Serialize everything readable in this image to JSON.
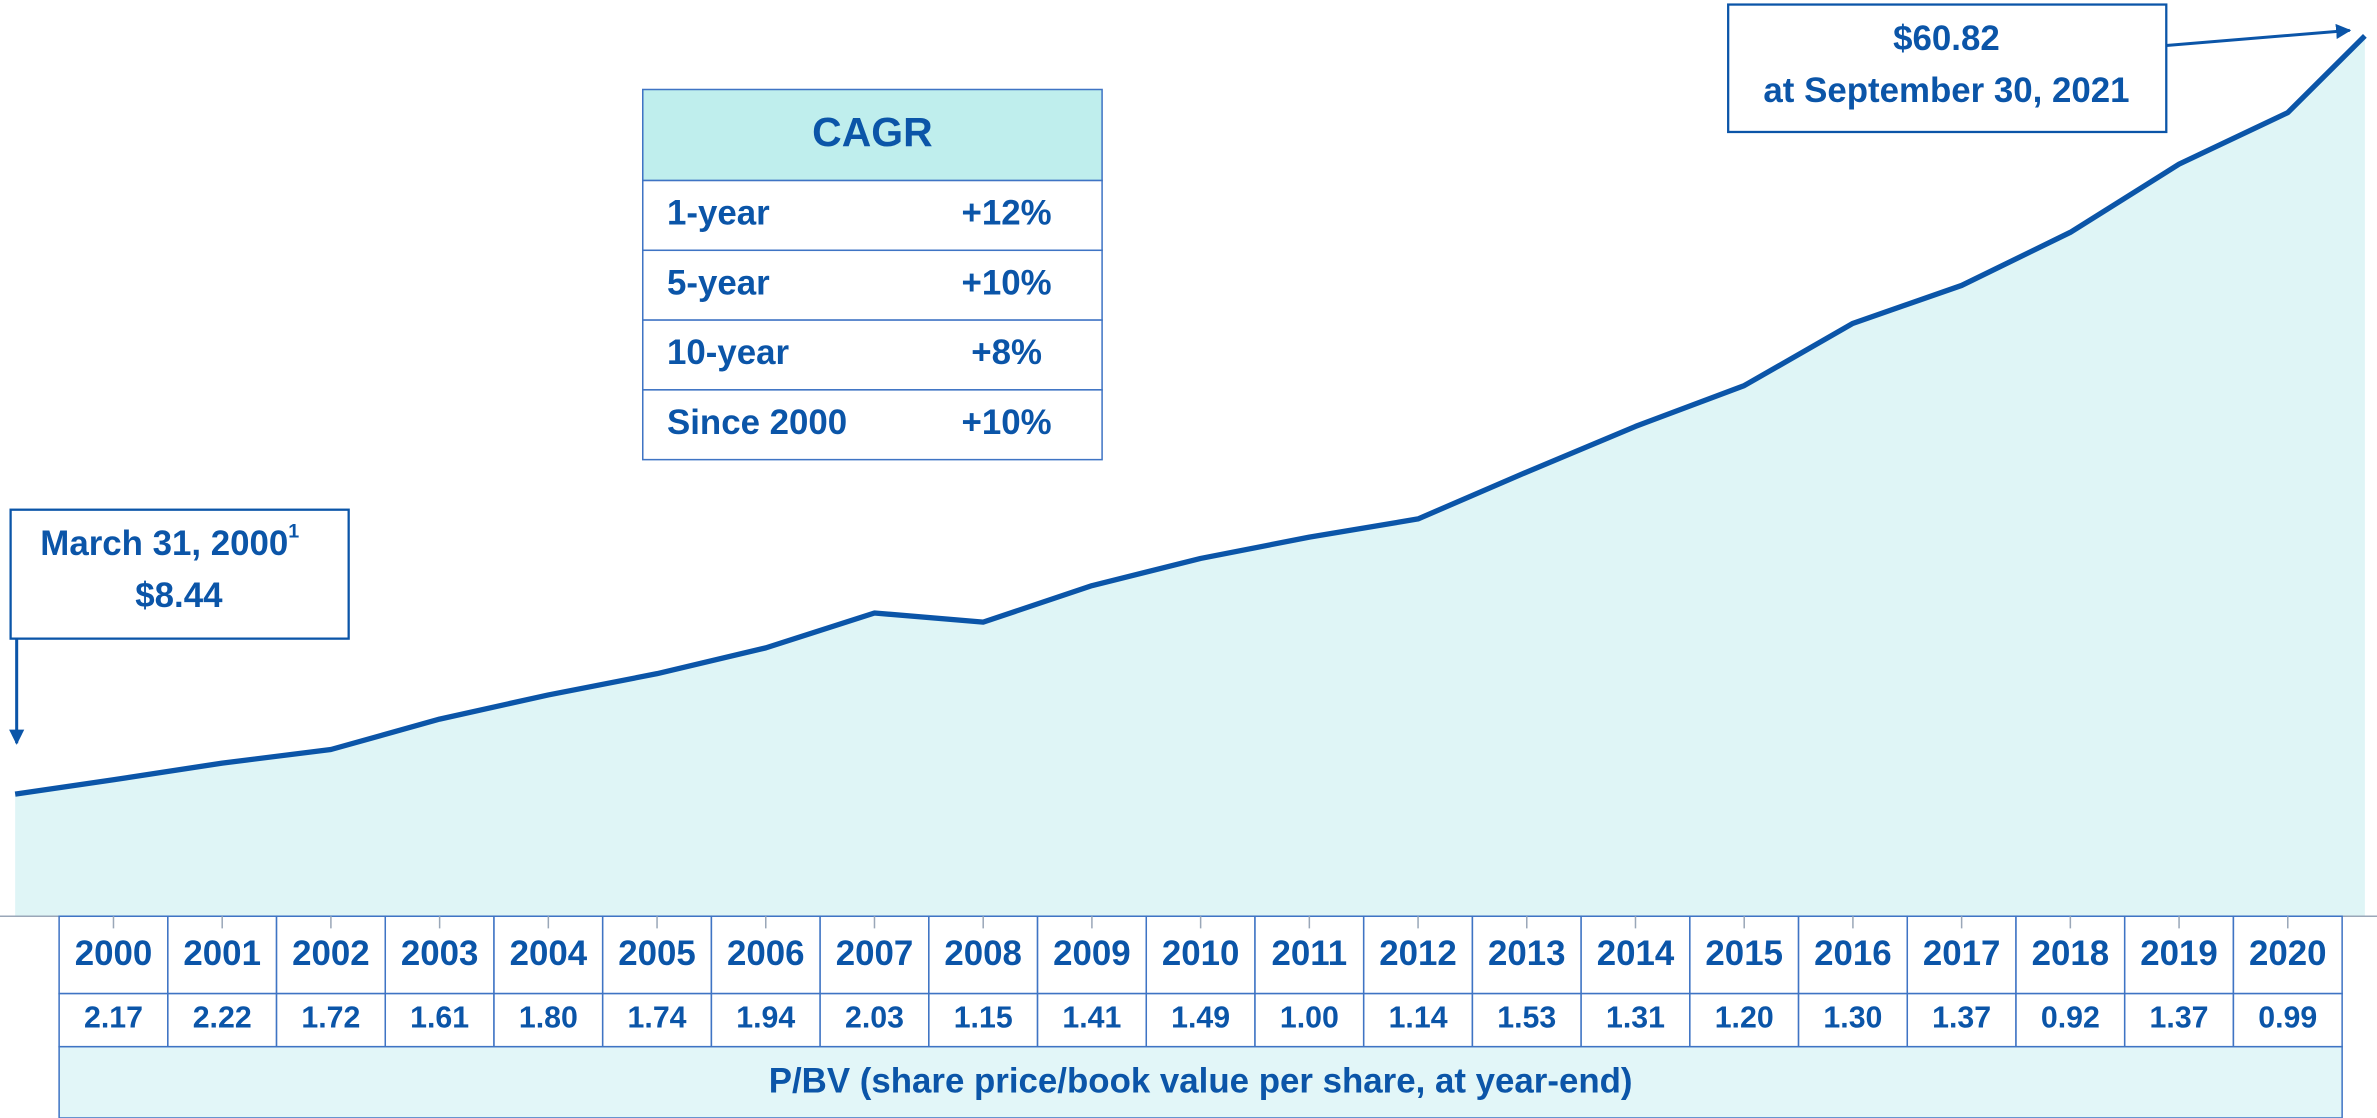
{
  "chart_data": {
    "type": "area",
    "color": "#0b55a8",
    "fill": "#dff5f6",
    "values": [
      8.44,
      9.43,
      10.58,
      11.52,
      13.62,
      15.29,
      16.76,
      18.54,
      20.95,
      20.32,
      22.84,
      24.72,
      26.19,
      27.45,
      30.69,
      33.84,
      36.66,
      40.96,
      43.58,
      47.25,
      51.96,
      55.52,
      60.82
    ],
    "value_labels": [
      "$8.44",
      null,
      null,
      null,
      null,
      null,
      null,
      null,
      null,
      null,
      null,
      null,
      null,
      null,
      null,
      null,
      null,
      null,
      null,
      null,
      null,
      null,
      "$60.82"
    ],
    "ylim": [
      0,
      63.3
    ],
    "annotations": [
      {
        "text": "March 31, 2000",
        "note": "1"
      },
      {
        "text": "at September 30, 2021"
      }
    ],
    "cagr": {
      "title": "CAGR",
      "rows": [
        [
          "1-year",
          "+12%"
        ],
        [
          "5-year",
          "+10%"
        ],
        [
          "10-year",
          "+8%"
        ],
        [
          "Since 2000",
          "+10%"
        ]
      ]
    },
    "pbv": {
      "categories": [
        "2000",
        "2001",
        "2002",
        "2003",
        "2004",
        "2005",
        "2006",
        "2007",
        "2008",
        "2009",
        "2010",
        "2011",
        "2012",
        "2013",
        "2014",
        "2015",
        "2016",
        "2017",
        "2018",
        "2019",
        "2020"
      ],
      "values": [
        "2.17",
        "2.22",
        "1.72",
        "1.61",
        "1.80",
        "1.74",
        "1.94",
        "2.03",
        "1.15",
        "1.41",
        "1.49",
        "1.00",
        "1.14",
        "1.53",
        "1.31",
        "1.20",
        "1.30",
        "1.37",
        "0.92",
        "1.37",
        "0.99"
      ],
      "caption": "P/BV (share price/book value per share, at year-end)"
    }
  }
}
